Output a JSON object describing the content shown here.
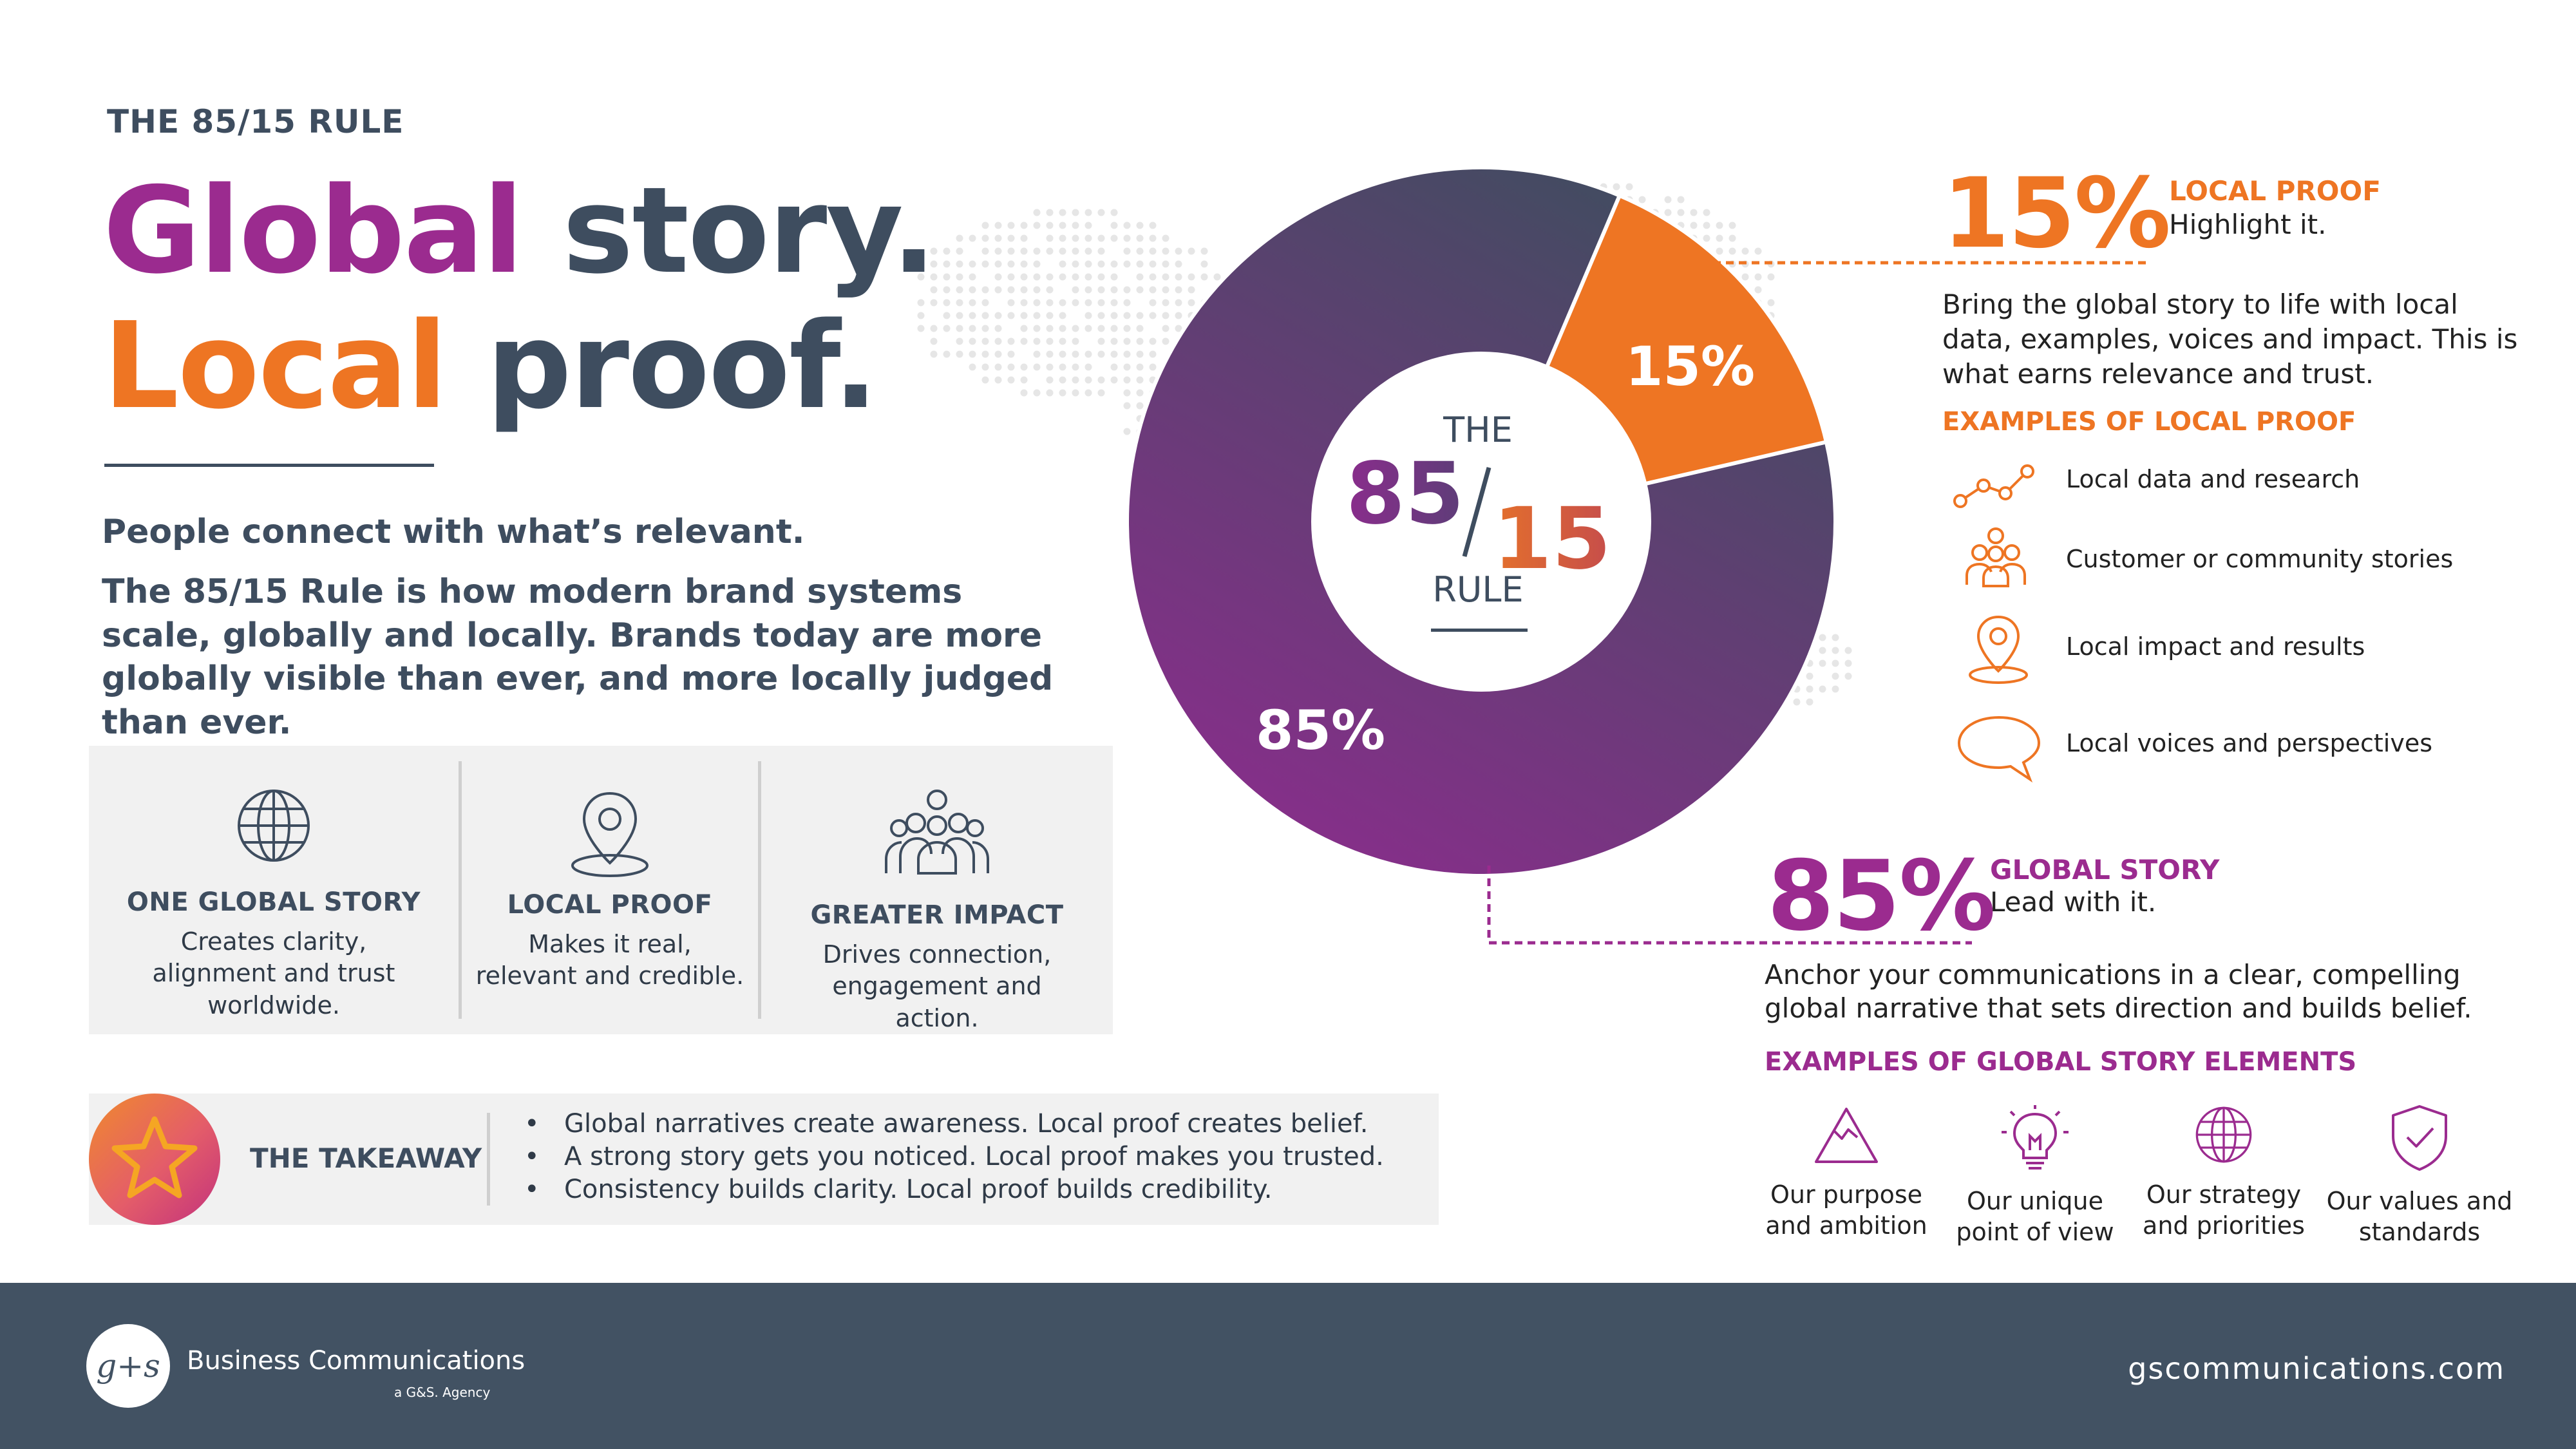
{
  "eyebrow": "THE 85/15 RULE",
  "headline": {
    "line1_accent": "Global",
    "line1_rest": " story.",
    "line2_accent": "Local",
    "line2_rest": " proof."
  },
  "lead": {
    "line1": "People connect with what’s relevant.",
    "line2": "The 85/15 Rule is how modern brand systems scale, globally and locally. Brands today are more globally visible than ever, and more locally judged than ever."
  },
  "pillars": [
    {
      "icon": "globe-icon",
      "title": "ONE GLOBAL STORY",
      "text": "Creates clarity, alignment and trust worldwide."
    },
    {
      "icon": "map-pin-icon",
      "title": "LOCAL PROOF",
      "text": "Makes it real, relevant and credible."
    },
    {
      "icon": "people-group-icon",
      "title": "GREATER IMPACT",
      "text": "Drives connection, engagement and action."
    }
  ],
  "takeaway": {
    "label": "THE TAKEAWAY",
    "icon": "star-icon",
    "bullets": [
      "Global narratives create awareness. Local proof creates belief.",
      "A strong story gets you noticed. Local proof makes you trusted.",
      "Consistency builds clarity. Local proof builds credibility."
    ]
  },
  "chart_data": {
    "type": "pie",
    "categories": [
      "GLOBAL STORY",
      "LOCAL PROOF"
    ],
    "values": [
      85,
      15
    ],
    "data_labels": [
      "85%",
      "15%"
    ],
    "colors": [
      "#8a2d8c",
      "#ee7523"
    ],
    "center_label": {
      "top": "THE",
      "num_a": "85",
      "slash": "/",
      "num_b": "15",
      "bottom": "RULE"
    }
  },
  "local_proof": {
    "percent": "15%",
    "title": "LOCAL PROOF",
    "subtitle": "Highlight it.",
    "body": "Bring the global story to life with local data, examples, voices and impact. This is what earns relevance and trust.",
    "examples_title": "EXAMPLES OF LOCAL PROOF",
    "examples": [
      {
        "icon": "trend-line-icon",
        "label": "Local data and research"
      },
      {
        "icon": "community-icon",
        "label": "Customer or community stories"
      },
      {
        "icon": "location-pin-icon",
        "label": "Local impact and results"
      },
      {
        "icon": "speech-bubble-icon",
        "label": "Local voices and perspectives"
      }
    ]
  },
  "global_story": {
    "percent": "85%",
    "title": "GLOBAL STORY",
    "subtitle": "Lead with it.",
    "body": "Anchor your communications in a clear, compelling global narrative that sets direction and builds belief.",
    "examples_title": "EXAMPLES OF GLOBAL STORY ELEMENTS",
    "examples": [
      {
        "icon": "mountain-icon",
        "label": "Our purpose and ambition"
      },
      {
        "icon": "lightbulb-icon",
        "label": "Our unique point of view"
      },
      {
        "icon": "globe-icon",
        "label": "Our strategy and priorities"
      },
      {
        "icon": "shield-check-icon",
        "label": "Our values and standards"
      }
    ]
  },
  "footer": {
    "logo_text": "g+s",
    "brand": "Business Communications",
    "agency": "a G&S. Agency",
    "website": "gscommunications.com"
  },
  "colors": {
    "slate": "#3e4d5f",
    "purple": "#9b2b8f",
    "orange": "#ee7523",
    "footer": "#425263",
    "panel": "#f1f1f1"
  }
}
